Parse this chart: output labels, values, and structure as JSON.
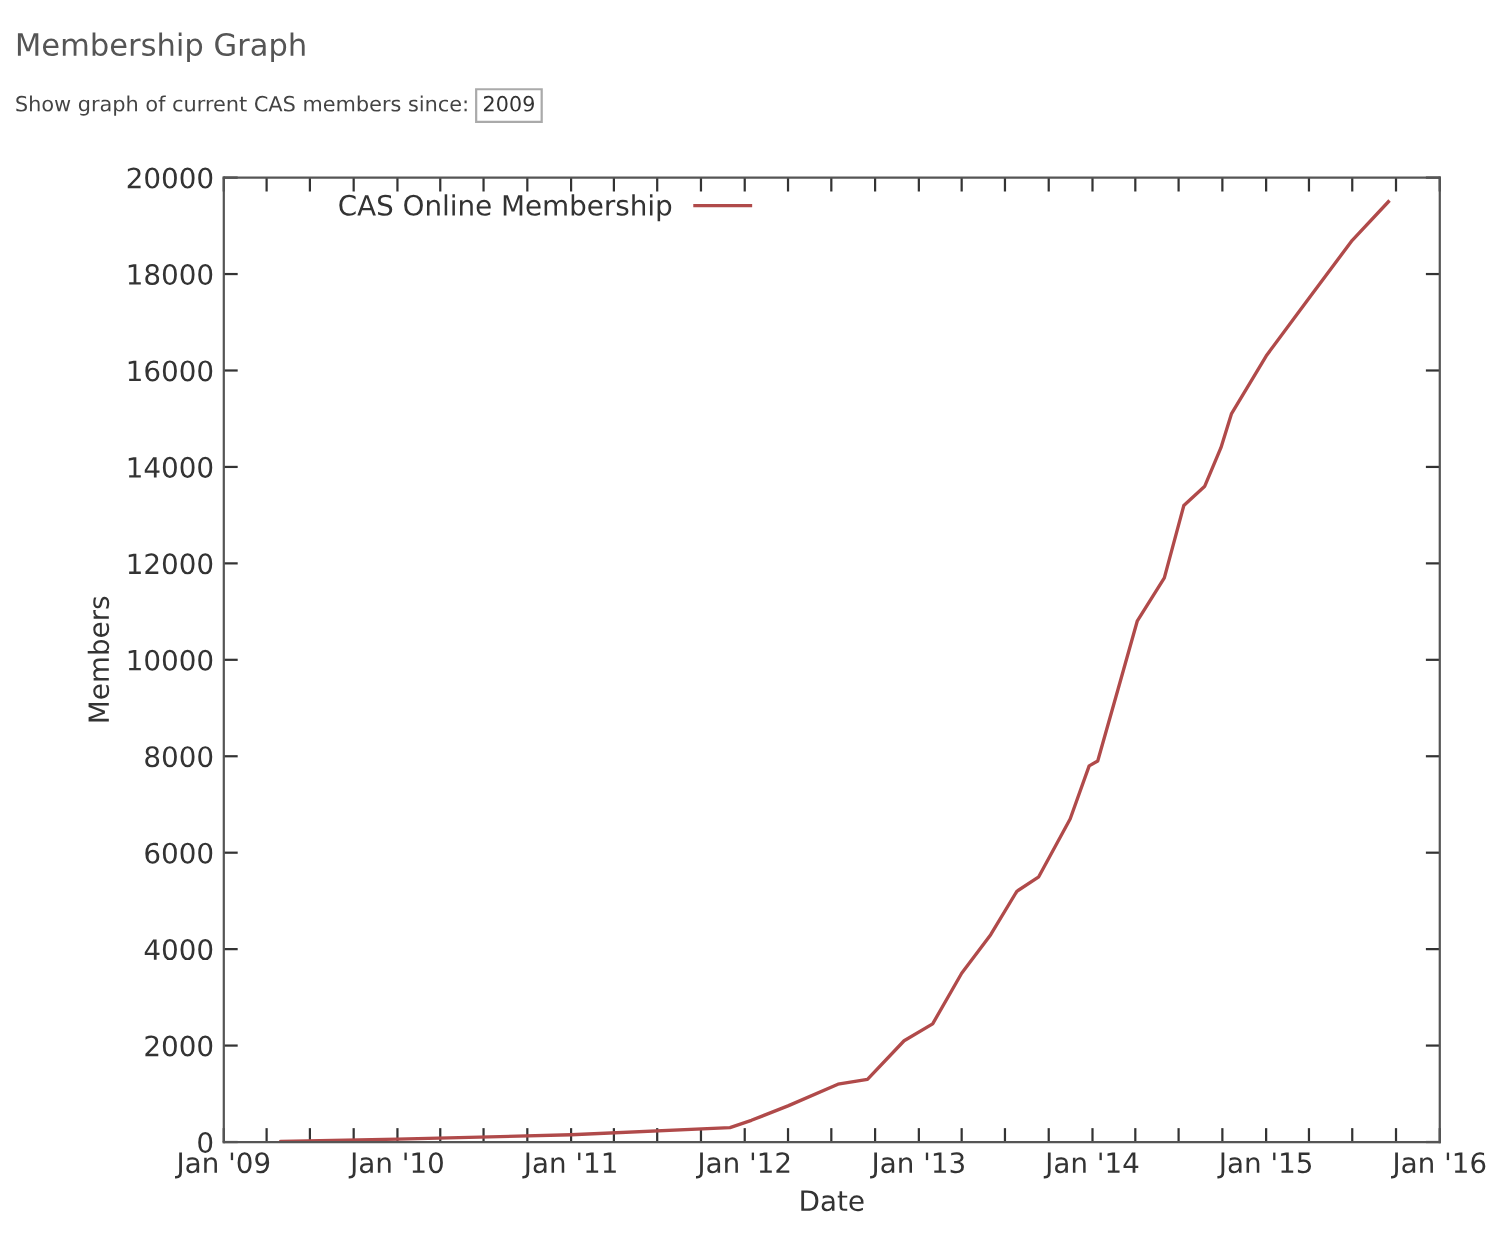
{
  "chart_data": {
    "type": "line",
    "title": "Membership Graph",
    "subtitle": "Show graph of current CAS members since:",
    "annotations": [
      "2009"
    ],
    "xlabel": "Date",
    "ylabel": "Members",
    "xlim": [
      "2009-01-01",
      "2016-01-01"
    ],
    "ylim": [
      0,
      20000
    ],
    "xticks": [
      {
        "value": "2009-01-01",
        "label": "Jan '09"
      },
      {
        "value": "2009-04-01",
        "label": null
      },
      {
        "value": "2009-07-01",
        "label": null
      },
      {
        "value": "2009-10-01",
        "label": null
      },
      {
        "value": "2010-01-01",
        "label": "Jan '10"
      },
      {
        "value": "2010-04-01",
        "label": null
      },
      {
        "value": "2010-07-01",
        "label": null
      },
      {
        "value": "2010-10-01",
        "label": null
      },
      {
        "value": "2011-01-01",
        "label": "Jan '11"
      },
      {
        "value": "2011-04-01",
        "label": null
      },
      {
        "value": "2011-07-01",
        "label": null
      },
      {
        "value": "2011-10-01",
        "label": null
      },
      {
        "value": "2012-01-01",
        "label": "Jan '12"
      },
      {
        "value": "2012-04-01",
        "label": null
      },
      {
        "value": "2012-07-01",
        "label": null
      },
      {
        "value": "2012-10-01",
        "label": null
      },
      {
        "value": "2013-01-01",
        "label": "Jan '13"
      },
      {
        "value": "2013-04-01",
        "label": null
      },
      {
        "value": "2013-07-01",
        "label": null
      },
      {
        "value": "2013-10-01",
        "label": null
      },
      {
        "value": "2014-01-01",
        "label": "Jan '14"
      },
      {
        "value": "2014-04-01",
        "label": null
      },
      {
        "value": "2014-07-01",
        "label": null
      },
      {
        "value": "2014-10-01",
        "label": null
      },
      {
        "value": "2015-01-01",
        "label": "Jan '15"
      },
      {
        "value": "2015-04-01",
        "label": null
      },
      {
        "value": "2015-07-01",
        "label": null
      },
      {
        "value": "2015-10-01",
        "label": null
      },
      {
        "value": "2016-01-01",
        "label": "Jan '16"
      }
    ],
    "yticks": [
      0,
      2000,
      4000,
      6000,
      8000,
      10000,
      12000,
      14000,
      16000,
      18000,
      20000
    ],
    "grid": false,
    "legend": "top left",
    "marker": "none",
    "line_style": "solid",
    "series": [
      {
        "name": "CAS Online Membership",
        "color": "#b04a4a",
        "x": [
          "2009-05-01",
          "2010-01-01",
          "2011-01-01",
          "2011-12-01",
          "2012-01-15",
          "2012-04-01",
          "2012-07-15",
          "2012-09-15",
          "2012-12-01",
          "2013-01-30",
          "2013-04-01",
          "2013-06-01",
          "2013-07-26",
          "2013-09-10",
          "2013-11-15",
          "2013-12-25",
          "2014-01-12",
          "2014-02-24",
          "2014-04-05",
          "2014-06-01",
          "2014-07-12",
          "2014-08-25",
          "2014-09-28",
          "2014-10-20",
          "2015-01-01",
          "2015-04-01",
          "2015-07-01",
          "2015-09-15"
        ],
        "values": [
          10,
          60,
          150,
          300,
          450,
          750,
          1200,
          1300,
          2100,
          2450,
          3500,
          4300,
          5200,
          5500,
          6700,
          7800,
          7900,
          9400,
          10800,
          11700,
          13200,
          13600,
          14400,
          15100,
          16300,
          17500,
          18700,
          19500
        ]
      }
    ]
  }
}
